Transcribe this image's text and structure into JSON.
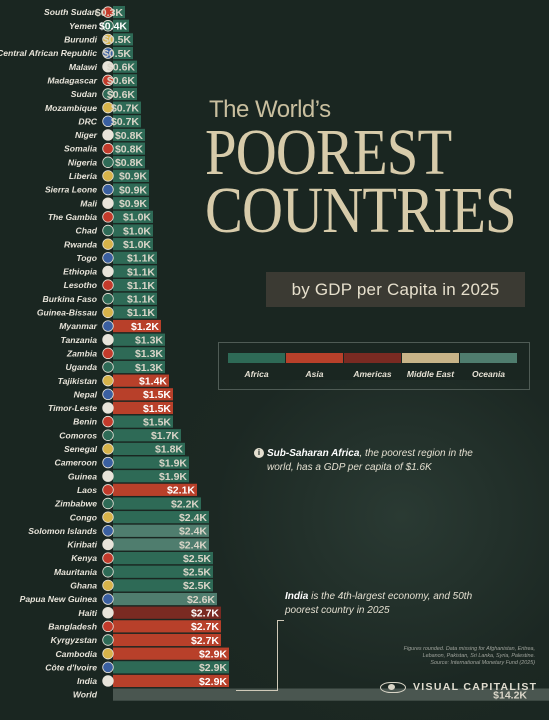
{
  "title": {
    "line1": "The World’s",
    "line2": "POOREST",
    "line3": "COUNTRIES",
    "subtitle": "by GDP per Capita in 2025"
  },
  "legend": [
    {
      "label": "Africa",
      "color": "#2e6a56"
    },
    {
      "label": "Asia",
      "color": "#b8402a"
    },
    {
      "label": "Americas",
      "color": "#7a2a22"
    },
    {
      "label": "Middle East",
      "color": "#c8b488"
    },
    {
      "label": "Oceania",
      "color": "#4f7d6e"
    }
  ],
  "colors": {
    "Africa": "#2e6a56",
    "Asia": "#b8402a",
    "Americas": "#7a2a22",
    "Oceania": "#4f7d6e",
    "World": "#4a5650"
  },
  "annotations": {
    "africa_bold": "Sub-Saharan Africa",
    "africa_text": ", the poorest region in the world, has a GDP per capita of $1.6K",
    "india_bold": "India",
    "india_text": " is the 4th-largest economy, and 50th poorest country in 2025"
  },
  "source": {
    "line1": "Figures rounded. Data missing for Afghanistan, Eritrea,",
    "line2": "Lebanon, Pakistan, Sri Lanka, Syria, Palestine.",
    "line3": "Source: International Monetary Fund (2025)"
  },
  "brand": "VISUAL CAPITALIST",
  "chart_data": {
    "type": "bar",
    "orientation": "horizontal",
    "unit": "USD thousands",
    "categories": [
      "South Sudan",
      "Yemen",
      "Burundi",
      "Central African Republic",
      "Malawi",
      "Madagascar",
      "Sudan",
      "Mozambique",
      "DRC",
      "Niger",
      "Somalia",
      "Nigeria",
      "Liberia",
      "Sierra Leone",
      "Mali",
      "The Gambia",
      "Chad",
      "Rwanda",
      "Togo",
      "Ethiopia",
      "Lesotho",
      "Burkina Faso",
      "Guinea-Bissau",
      "Myanmar",
      "Tanzania",
      "Zambia",
      "Uganda",
      "Tajikistan",
      "Nepal",
      "Timor-Leste",
      "Benin",
      "Comoros",
      "Senegal",
      "Cameroon",
      "Guinea",
      "Laos",
      "Zimbabwe",
      "Congo",
      "Solomon Islands",
      "Kiribati",
      "Kenya",
      "Mauritania",
      "Ghana",
      "Papua New Guinea",
      "Haiti",
      "Bangladesh",
      "Kyrgyzstan",
      "Cambodia",
      "Côte d'Ivoire",
      "India",
      "World"
    ],
    "values": [
      0.3,
      0.4,
      0.5,
      0.5,
      0.6,
      0.6,
      0.6,
      0.7,
      0.7,
      0.8,
      0.8,
      0.8,
      0.9,
      0.9,
      0.9,
      1.0,
      1.0,
      1.0,
      1.1,
      1.1,
      1.1,
      1.1,
      1.1,
      1.2,
      1.3,
      1.3,
      1.3,
      1.4,
      1.5,
      1.5,
      1.5,
      1.7,
      1.8,
      1.9,
      1.9,
      2.1,
      2.2,
      2.4,
      2.4,
      2.4,
      2.5,
      2.5,
      2.5,
      2.6,
      2.7,
      2.7,
      2.7,
      2.9,
      2.9,
      2.9,
      14.2
    ],
    "labels": [
      "$0.3K",
      "$0.4K",
      "$0.5K",
      "$0.5K",
      "$0.6K",
      "$0.6K",
      "$0.6K",
      "$0.7K",
      "$0.7K",
      "$0.8K",
      "$0.8K",
      "$0.8K",
      "$0.9K",
      "$0.9K",
      "$0.9K",
      "$1.0K",
      "$1.0K",
      "$1.0K",
      "$1.1K",
      "$1.1K",
      "$1.1K",
      "$1.1K",
      "$1.1K",
      "$1.2K",
      "$1.3K",
      "$1.3K",
      "$1.3K",
      "$1.4K",
      "$1.5K",
      "$1.5K",
      "$1.5K",
      "$1.7K",
      "$1.8K",
      "$1.9K",
      "$1.9K",
      "$2.1K",
      "$2.2K",
      "$2.4K",
      "$2.4K",
      "$2.4K",
      "$2.5K",
      "$2.5K",
      "$2.5K",
      "$2.6K",
      "$2.7K",
      "$2.7K",
      "$2.7K",
      "$2.9K",
      "$2.9K",
      "$2.9K",
      "$14.2K"
    ],
    "regions": [
      "Africa",
      "Middle East",
      "Africa",
      "Africa",
      "Africa",
      "Africa",
      "Africa",
      "Africa",
      "Africa",
      "Africa",
      "Africa",
      "Africa",
      "Africa",
      "Africa",
      "Africa",
      "Africa",
      "Africa",
      "Africa",
      "Africa",
      "Africa",
      "Africa",
      "Africa",
      "Africa",
      "Asia",
      "Africa",
      "Africa",
      "Africa",
      "Asia",
      "Asia",
      "Asia",
      "Africa",
      "Africa",
      "Africa",
      "Africa",
      "Africa",
      "Asia",
      "Africa",
      "Africa",
      "Oceania",
      "Oceania",
      "Africa",
      "Africa",
      "Africa",
      "Oceania",
      "Americas",
      "Asia",
      "Asia",
      "Asia",
      "Africa",
      "Asia",
      "World"
    ],
    "highlighted": [
      "Yemen",
      "Myanmar",
      "Tajikistan",
      "Nepal",
      "Timor-Leste",
      "Laos",
      "Haiti",
      "Bangladesh",
      "Kyrgyzstan",
      "Cambodia",
      "India"
    ]
  }
}
